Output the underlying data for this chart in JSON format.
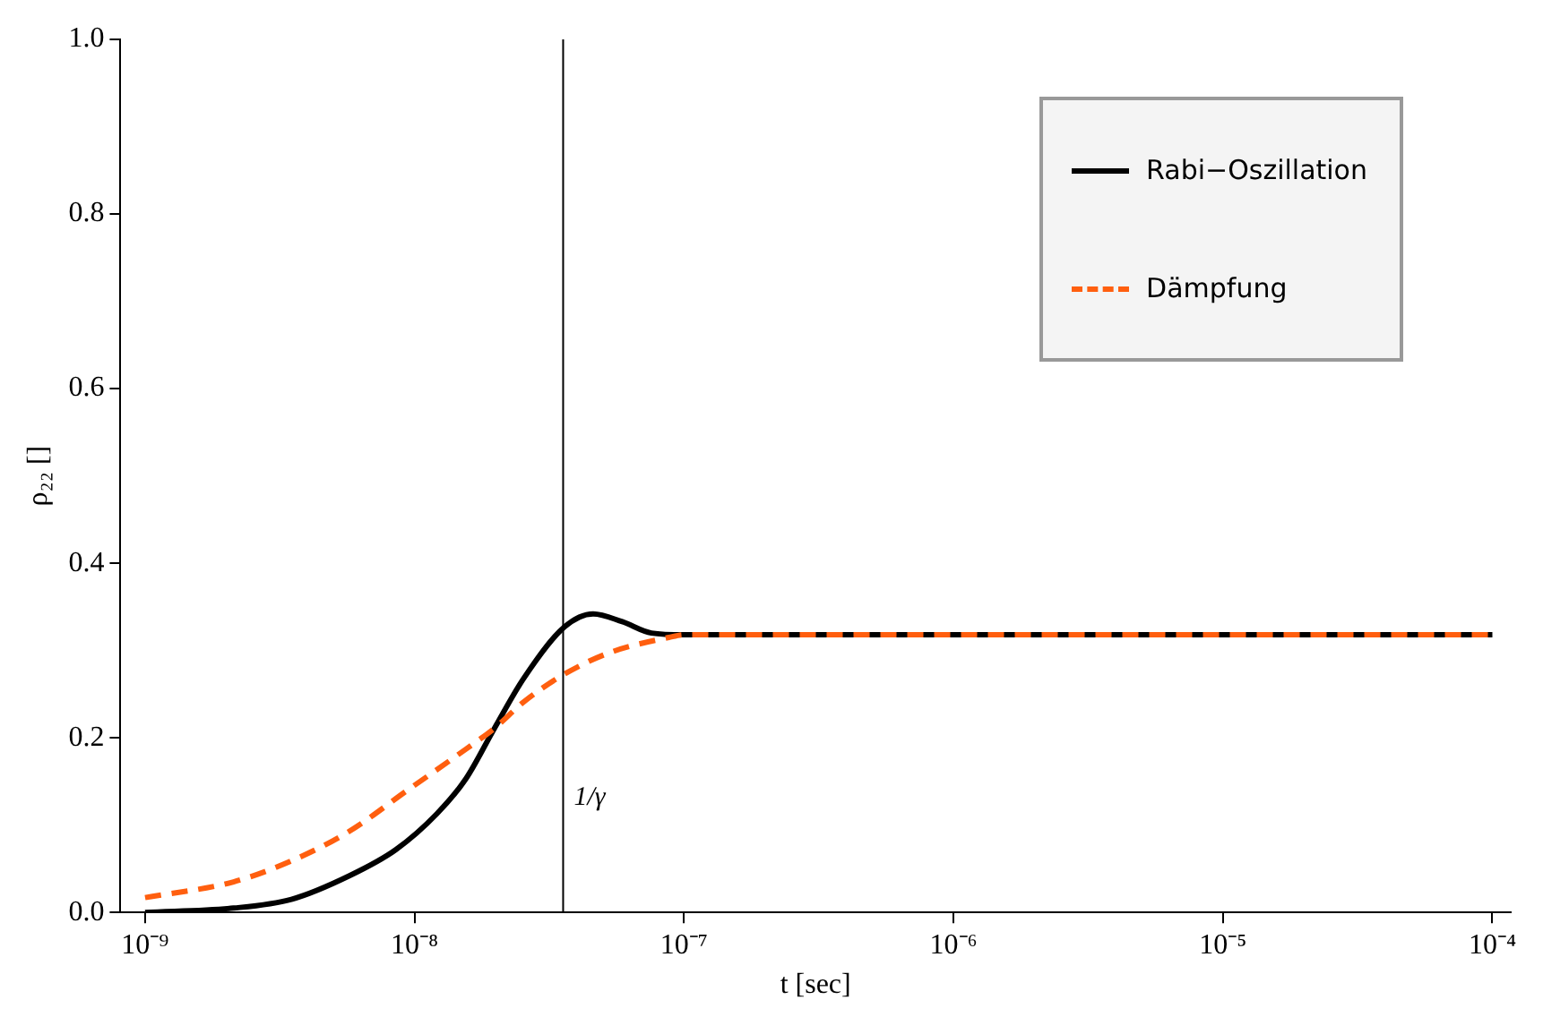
{
  "chart_data": {
    "type": "line",
    "xlabel": "t [sec]",
    "ylabel": "ρ₂₂ []",
    "log": "x",
    "legend": "top right",
    "xlim": [
      8.1e-10,
      0.000117
    ],
    "xticks": [
      {
        "value": 1e-09,
        "label": "10⁻⁹"
      },
      {
        "value": 1e-08,
        "label": "10⁻⁸"
      },
      {
        "value": 1e-07,
        "label": "10⁻⁷"
      },
      {
        "value": 1e-06,
        "label": "10⁻⁶"
      },
      {
        "value": 1e-05,
        "label": "10⁻⁵"
      },
      {
        "value": 0.0001,
        "label": "10⁻⁴"
      }
    ],
    "ylim": [
      0,
      1
    ],
    "yticks": [
      {
        "value": 0,
        "label": "0.0"
      },
      {
        "value": 0.2,
        "label": "0.2"
      },
      {
        "value": 0.4,
        "label": "0.4"
      },
      {
        "value": 0.6,
        "label": "0.6"
      },
      {
        "value": 0.8,
        "label": "0.8"
      },
      {
        "value": 1,
        "label": "1.0"
      }
    ],
    "ref_lines": [
      {
        "axis": "x",
        "value": 3.56e-08,
        "label": "1/γ",
        "color": "#000000"
      }
    ],
    "series": [
      {
        "name": "Rabi−Oszillation",
        "color": "#000000",
        "line_style": "solid",
        "x": [
          1e-09,
          2.13e-09,
          3.49e-09,
          5.73e-09,
          8.53e-09,
          1.21e-08,
          1.55e-08,
          1.98e-08,
          2.54e-08,
          3.6e-08,
          4.6e-08,
          5.9e-08,
          7.57e-08,
          1e-07,
          1e-06,
          1e-05,
          0.0001
        ],
        "values": [
          0,
          0.005,
          0.015,
          0.042,
          0.072,
          0.113,
          0.153,
          0.211,
          0.268,
          0.327,
          0.342,
          0.333,
          0.32,
          0.318,
          0.318,
          0.318,
          0.318
        ]
      },
      {
        "name": "Dämpfung",
        "color": "#ff5f0f",
        "line_style": "dashed",
        "x": [
          1e-09,
          2.13e-09,
          3.49e-09,
          5.73e-09,
          9.42e-09,
          1.55e-08,
          1.98e-08,
          2.54e-08,
          3.6e-08,
          5.35e-08,
          8.79e-08,
          1e-07,
          1e-06,
          1e-05,
          0.0001
        ],
        "values": [
          0.017,
          0.035,
          0.059,
          0.093,
          0.14,
          0.187,
          0.211,
          0.241,
          0.273,
          0.298,
          0.315,
          0.318,
          0.318,
          0.318,
          0.318
        ]
      }
    ]
  }
}
